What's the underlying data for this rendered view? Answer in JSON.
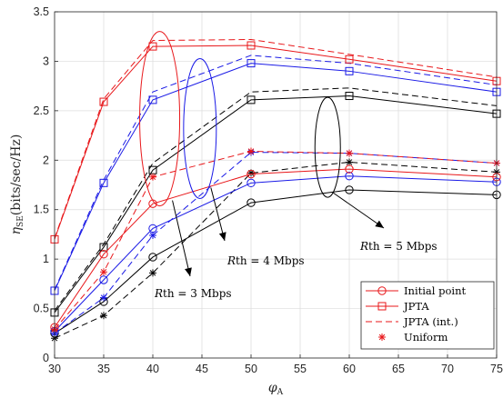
{
  "chart_data": {
    "type": "line",
    "xlabel": "φ",
    "xlabel_sub": "A",
    "ylabel": "η",
    "ylabel_sub": "SE",
    "ylabel_unit": "(bits/sec/Hz)",
    "xlim": [
      30,
      75
    ],
    "ylim": [
      0,
      3.5
    ],
    "xticks": [
      30,
      35,
      40,
      45,
      50,
      55,
      60,
      65,
      70,
      75
    ],
    "yticks": [
      0,
      0.5,
      1,
      1.5,
      2,
      2.5,
      3,
      3.5
    ],
    "ytick_labels": [
      "0",
      "0.5",
      "1",
      "1.5",
      "2",
      "2.5",
      "3",
      "3.5"
    ],
    "grid": true,
    "legend_position": "bottom-right",
    "x": [
      30,
      35,
      40,
      50,
      60,
      75
    ],
    "groups": [
      {
        "color": "#e8171a",
        "initial_point": [
          0.31,
          1.05,
          1.56,
          1.86,
          1.91,
          1.83
        ],
        "jpta": [
          1.2,
          2.59,
          3.15,
          3.16,
          3.02,
          2.8
        ],
        "jpta_int": [
          1.21,
          2.62,
          3.21,
          3.22,
          3.07,
          2.84
        ],
        "uniform": [
          0.29,
          0.87,
          1.83,
          2.09,
          2.07,
          1.97
        ]
      },
      {
        "color": "#1a1ae6",
        "initial_point": [
          0.27,
          0.79,
          1.31,
          1.77,
          1.84,
          1.78
        ],
        "jpta": [
          0.68,
          1.77,
          2.61,
          2.98,
          2.9,
          2.69
        ],
        "jpta_int": [
          0.69,
          1.8,
          2.69,
          3.06,
          2.98,
          2.76
        ],
        "uniform": [
          0.25,
          0.61,
          1.24,
          2.08,
          2.07,
          1.97
        ]
      },
      {
        "color": "#000000",
        "initial_point": [
          0.25,
          0.57,
          1.02,
          1.57,
          1.7,
          1.65
        ],
        "jpta": [
          0.46,
          1.12,
          1.9,
          2.61,
          2.65,
          2.47
        ],
        "jpta_int": [
          0.48,
          1.15,
          1.97,
          2.69,
          2.73,
          2.55
        ],
        "uniform": [
          0.2,
          0.43,
          0.86,
          1.87,
          1.98,
          1.88
        ]
      }
    ],
    "annotations": [
      {
        "text": "Rth = 3 Mbps",
        "var": "R",
        "rest": "th = 3 Mbps"
      },
      {
        "text": "Rth = 4 Mbps",
        "var": "R",
        "rest": "th = 4 Mbps"
      },
      {
        "text": "Rth = 5 Mbps",
        "var": "R",
        "rest": "th = 5 Mbps"
      }
    ],
    "legend": [
      {
        "label": "Initial point",
        "line": "solid",
        "marker": "circle"
      },
      {
        "label": "JPTA",
        "line": "solid",
        "marker": "square"
      },
      {
        "label": "JPTA (int.)",
        "line": "dashed",
        "marker": "none"
      },
      {
        "label": "Uniform",
        "line": "none",
        "marker": "asterisk"
      }
    ]
  }
}
